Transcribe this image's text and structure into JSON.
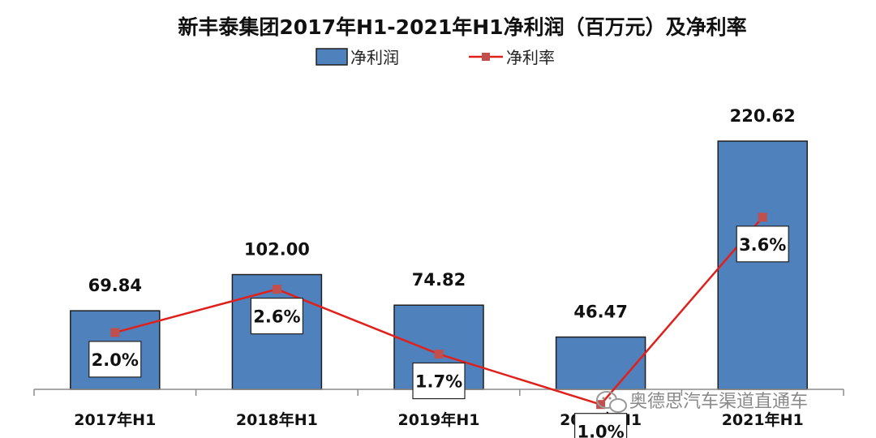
{
  "chart_data": {
    "type": "bar",
    "title": "新丰泰集团2017年H1-2021年H1净利润（百万元）及净利率",
    "categories": [
      "2017年H1",
      "2018年H1",
      "2019年H1",
      "2020年H1",
      "2021年H1"
    ],
    "series": [
      {
        "name": "净利润",
        "type": "bar",
        "values": [
          69.84,
          102.0,
          74.82,
          46.47,
          220.62
        ],
        "labels": [
          "69.84",
          "102.00",
          "74.82",
          "46.47",
          "220.62"
        ]
      },
      {
        "name": "净利率",
        "type": "line",
        "values": [
          2.0,
          2.6,
          1.7,
          1.0,
          3.6
        ],
        "labels": [
          "2.0%",
          "2.6%",
          "1.7%",
          "1.0%",
          "3.6%"
        ]
      }
    ],
    "legend_position": "top-center",
    "grid": false,
    "colors": {
      "bar": "#4F81BD",
      "bar_edge": "#1F1F1F",
      "line": "#E0201B",
      "marker": "#C0504D"
    }
  },
  "watermark": "奥德思汽车渠道直通车"
}
